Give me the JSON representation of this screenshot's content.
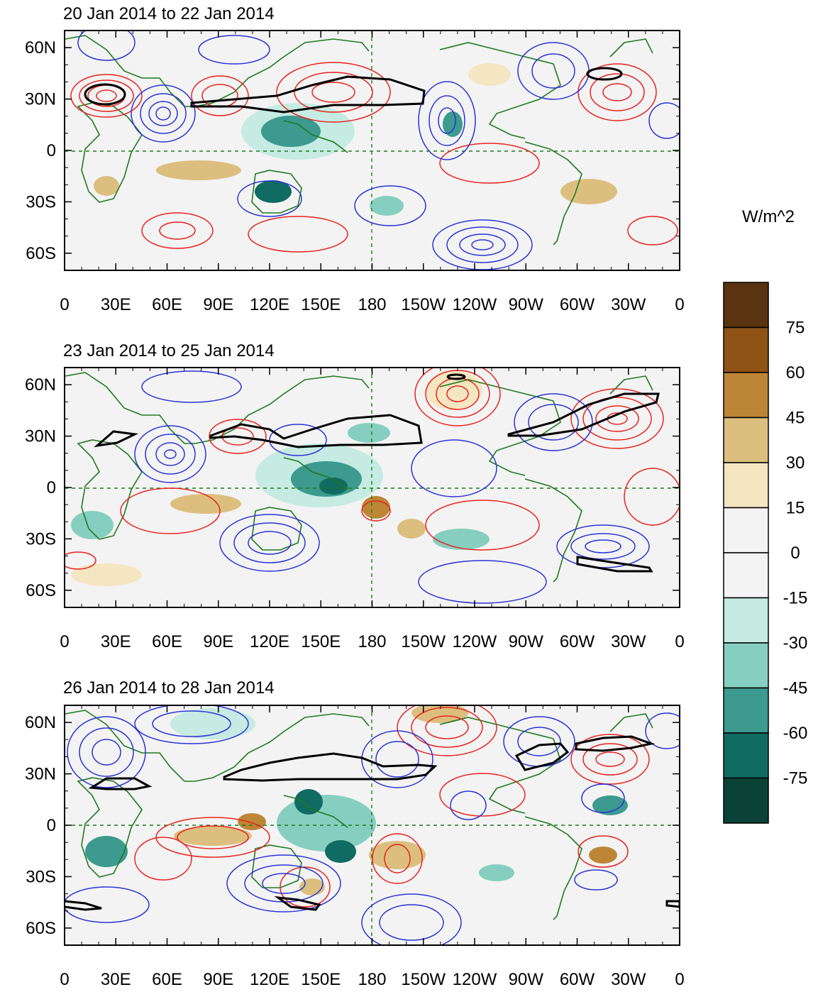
{
  "panels": [
    {
      "title": "20 Jan 2014 to 22 Jan 2014"
    },
    {
      "title": "23 Jan 2014 to 25 Jan 2014"
    },
    {
      "title": "26 Jan 2014 to 28 Jan 2014"
    }
  ],
  "axes": {
    "lon_labels": [
      "0",
      "30E",
      "60E",
      "90E",
      "120E",
      "150E",
      "180",
      "150W",
      "120W",
      "90W",
      "60W",
      "30W",
      "0"
    ],
    "lat_labels": [
      "60N",
      "30N",
      "0",
      "30S",
      "60S"
    ],
    "lat_values": [
      60,
      30,
      0,
      -30,
      -60
    ]
  },
  "colorbar": {
    "unit": "W/m^2",
    "labels": [
      "75",
      "60",
      "45",
      "30",
      "15",
      "0",
      "-15",
      "-30",
      "-45",
      "-60",
      "-75"
    ],
    "colors": [
      "#5a3410",
      "#8f5316",
      "#bd8636",
      "#dcbf7e",
      "#f5e6c2",
      "#f3f3f3",
      "#f3f3f3",
      "#c5ebe2",
      "#86cfc0",
      "#3c9a8e",
      "#106b62",
      "#0a4238"
    ]
  },
  "colors": {
    "positive_contour": "#e8231e",
    "negative_contour": "#2b34d6",
    "thick_contour": "#000000",
    "coastline": "#1f7a1f",
    "frame": "#000000"
  }
}
